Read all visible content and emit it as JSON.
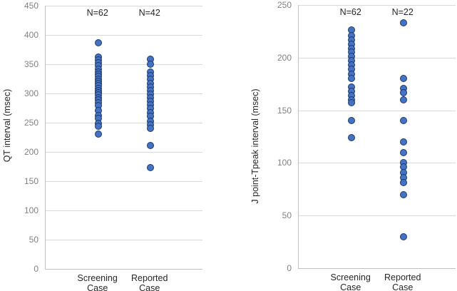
{
  "colors": {
    "dot_fill": "#4472C4",
    "dot_border": "#1F3864",
    "gridline": "#D9D9D9",
    "axis_line": "#BFBFBF",
    "tick_label": "#808080",
    "text": "#262626"
  },
  "chart_data": [
    {
      "type": "scatter",
      "title": "",
      "xlabel": "",
      "ylabel": "QT interval (msec)",
      "ylim": [
        0,
        450
      ],
      "ytick_step": 50,
      "yticks": [
        0,
        50,
        100,
        150,
        200,
        250,
        300,
        350,
        400,
        450
      ],
      "grid": true,
      "legend": "none",
      "categories": [
        "Screening Case",
        "Reported Case"
      ],
      "category_lines": [
        [
          "Screening",
          "Case"
        ],
        [
          "Reported",
          "Case"
        ]
      ],
      "annotations": [
        "N=62",
        "N=42"
      ],
      "series": [
        {
          "name": "Screening Case",
          "n_label": "N=62",
          "values": [
            387,
            362,
            357,
            352,
            347,
            342,
            337,
            333,
            329,
            325,
            321,
            317,
            313,
            309,
            305,
            301,
            297,
            293,
            289,
            284,
            279,
            271,
            262,
            257,
            249,
            244,
            231
          ]
        },
        {
          "name": "Reported Case",
          "n_label": "N=42",
          "values": [
            358,
            350,
            336,
            330,
            324,
            317,
            311,
            305,
            299,
            293,
            287,
            281,
            274,
            267,
            261,
            252,
            246,
            240,
            211,
            173
          ]
        }
      ]
    },
    {
      "type": "scatter",
      "title": "",
      "xlabel": "",
      "ylabel": "J point-Tpeak interval (msec)",
      "ylim": [
        0,
        250
      ],
      "ytick_step": 50,
      "yticks": [
        0,
        50,
        100,
        150,
        200,
        250
      ],
      "grid": true,
      "legend": "none",
      "categories": [
        "Screening Case",
        "Reported Case"
      ],
      "category_lines": [
        [
          "Screening",
          "Case"
        ],
        [
          "Reported",
          "Case"
        ]
      ],
      "annotations": [
        "N=62",
        "N=22"
      ],
      "series": [
        {
          "name": "Screening Case",
          "n_label": "N=62",
          "values": [
            226,
            221,
            217,
            213,
            209,
            205,
            201,
            197,
            193,
            189,
            184,
            180,
            172,
            168,
            164,
            160,
            157,
            140,
            124
          ]
        },
        {
          "name": "Reported Case",
          "n_label": "N=22",
          "values": [
            233,
            180,
            171,
            167,
            160,
            140,
            120,
            110,
            100,
            96,
            91,
            86,
            81,
            70,
            30
          ]
        }
      ]
    }
  ]
}
